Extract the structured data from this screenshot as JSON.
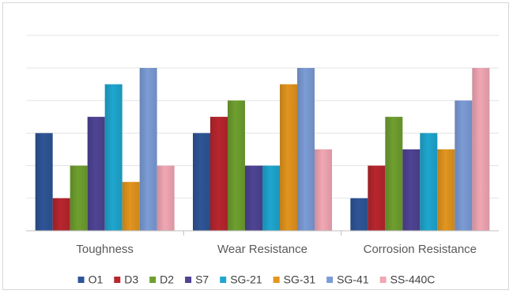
{
  "chart_data": {
    "type": "bar",
    "title": "",
    "xlabel": "",
    "ylabel": "",
    "ylim": [
      0,
      6
    ],
    "grid": true,
    "legend_position": "bottom",
    "categories": [
      "Toughness",
      "Wear Resistance",
      "Corrosion Resistance"
    ],
    "series": [
      {
        "name": "O1",
        "color": "#2e5597",
        "values": [
          3,
          3,
          1
        ]
      },
      {
        "name": "D3",
        "color": "#b8262e",
        "values": [
          1,
          3.5,
          2
        ]
      },
      {
        "name": "D2",
        "color": "#6e9f2f",
        "values": [
          2,
          4,
          3.5
        ]
      },
      {
        "name": "S7",
        "color": "#4e4493",
        "values": [
          3.5,
          2,
          2.5
        ]
      },
      {
        "name": "SG-21",
        "color": "#1fa6cf",
        "values": [
          4.5,
          2,
          3
        ]
      },
      {
        "name": "SG-31",
        "color": "#e2951f",
        "values": [
          1.5,
          4.5,
          2.5
        ]
      },
      {
        "name": "SG-41",
        "color": "#7c9cd6",
        "values": [
          5,
          5,
          4
        ]
      },
      {
        "name": "SS-440C",
        "color": "#f1a7b4",
        "values": [
          2,
          2.5,
          5
        ]
      }
    ]
  }
}
